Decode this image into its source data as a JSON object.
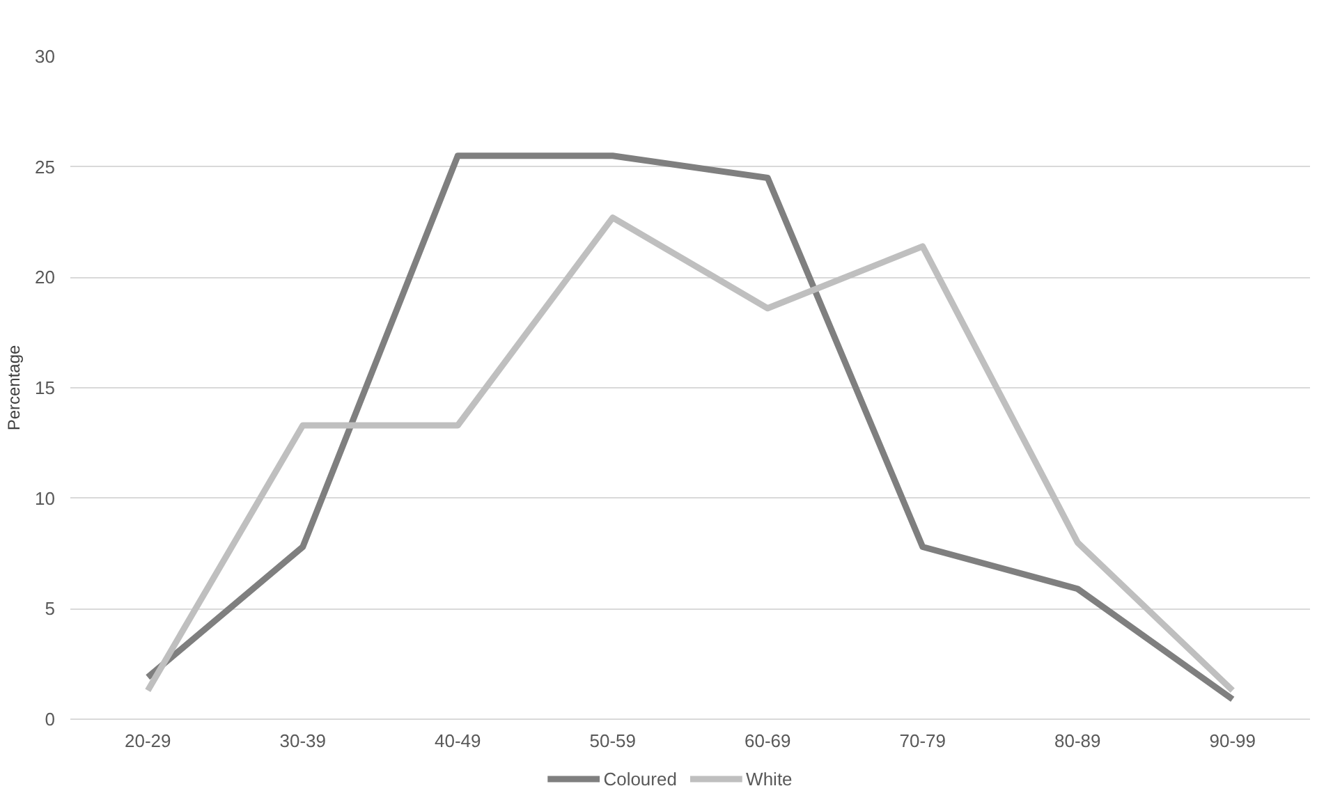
{
  "chart_data": {
    "type": "line",
    "ylabel": "Percentage",
    "categories": [
      "20-29",
      "30-39",
      "40-49",
      "50-59",
      "60-69",
      "70-79",
      "80-89",
      "90-99"
    ],
    "series": [
      {
        "name": "Coloured",
        "color": "#7f7f7f",
        "values": [
          1.9,
          7.8,
          25.5,
          25.5,
          24.5,
          7.8,
          5.9,
          0.9
        ]
      },
      {
        "name": "White",
        "color": "#bfbfbf",
        "values": [
          1.3,
          13.3,
          13.3,
          22.7,
          18.6,
          21.4,
          8.0,
          1.3
        ]
      }
    ],
    "ylim": [
      0,
      30
    ],
    "yticks": [
      0,
      5,
      10,
      15,
      20,
      25,
      30
    ],
    "grid": "y",
    "legend": "bottom",
    "marker": "none",
    "line_style": "solid"
  }
}
